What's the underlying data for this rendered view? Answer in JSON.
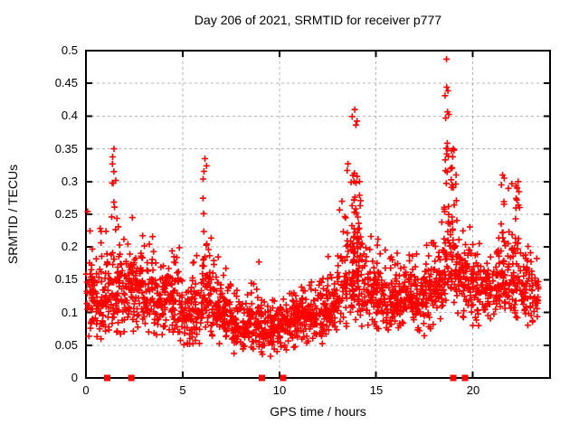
{
  "title": "Day 206 of 2021, SRMTID for receiver p777",
  "chart_data": {
    "type": "scatter",
    "title": "Day 206 of 2021, SRMTID for receiver p777",
    "xlabel": "GPS time / hours",
    "ylabel": "SRMTID / TECUs",
    "xlim": [
      0,
      24
    ],
    "ylim": [
      0,
      0.5
    ],
    "xticks": [
      0,
      5,
      10,
      15,
      20
    ],
    "yticks": [
      0,
      0.05,
      0.1,
      0.15,
      0.2,
      0.25,
      0.3,
      0.35,
      0.4,
      0.45,
      0.5
    ],
    "xtick_labels": [
      "0",
      "5",
      "10",
      "15",
      "20"
    ],
    "ytick_labels": [
      "0",
      "0.05",
      "0.1",
      "0.15",
      "0.2",
      "0.25",
      "0.3",
      "0.35",
      "0.4",
      "0.45",
      "0.5"
    ],
    "grid": true,
    "legend": "none",
    "colors": {
      "marker": "#ff0000",
      "grid": "#b3b3b3",
      "axis": "#000000",
      "background": "#ffffff",
      "text": "#000000"
    },
    "series": [
      {
        "name": "srmtid-scatter",
        "marker": "plus",
        "color": "#ff0000",
        "description": "Dense scatter of SRMTID values vs GPS time; baseline band ~0.05-0.18 TECUs with narrow spike columns near 1.5h (to 0.35), 6.1h (to 0.33), 13.9h (to 0.41), 18.7h (to 0.49), 21.5h (to 0.31) and 22.4h (to 0.30); quiet minimum 8-10h (~0.03-0.12).",
        "seed": 11,
        "bin_width": 0.5,
        "x_data_max": 23.4,
        "bins": [
          [
            0.0,
            48,
            0.055,
            0.115,
            0.27
          ],
          [
            0.5,
            48,
            0.055,
            0.115,
            0.23
          ],
          [
            1.0,
            48,
            0.06,
            0.13,
            0.28
          ],
          [
            1.5,
            48,
            0.06,
            0.135,
            0.25
          ],
          [
            2.0,
            48,
            0.065,
            0.13,
            0.25
          ],
          [
            2.5,
            48,
            0.07,
            0.14,
            0.22
          ],
          [
            3.0,
            44,
            0.06,
            0.115,
            0.23
          ],
          [
            3.5,
            44,
            0.055,
            0.11,
            0.18
          ],
          [
            4.0,
            48,
            0.055,
            0.115,
            0.2
          ],
          [
            4.5,
            48,
            0.05,
            0.105,
            0.21
          ],
          [
            5.0,
            48,
            0.04,
            0.09,
            0.16
          ],
          [
            5.5,
            48,
            0.045,
            0.1,
            0.19
          ],
          [
            6.0,
            48,
            0.055,
            0.115,
            0.24
          ],
          [
            6.5,
            48,
            0.05,
            0.1,
            0.2
          ],
          [
            7.0,
            48,
            0.04,
            0.09,
            0.17
          ],
          [
            7.5,
            48,
            0.035,
            0.08,
            0.14
          ],
          [
            8.0,
            48,
            0.03,
            0.07,
            0.13
          ],
          [
            8.5,
            48,
            0.03,
            0.07,
            0.18
          ],
          [
            9.0,
            48,
            0.03,
            0.065,
            0.12
          ],
          [
            9.5,
            48,
            0.03,
            0.07,
            0.12
          ],
          [
            10.0,
            48,
            0.04,
            0.08,
            0.13
          ],
          [
            10.5,
            48,
            0.04,
            0.085,
            0.13
          ],
          [
            11.0,
            48,
            0.045,
            0.09,
            0.14
          ],
          [
            11.5,
            48,
            0.05,
            0.09,
            0.15
          ],
          [
            12.0,
            48,
            0.05,
            0.095,
            0.16
          ],
          [
            12.5,
            48,
            0.06,
            0.105,
            0.19
          ],
          [
            13.0,
            50,
            0.07,
            0.12,
            0.27
          ],
          [
            13.5,
            54,
            0.08,
            0.14,
            0.33
          ],
          [
            14.0,
            50,
            0.075,
            0.135,
            0.3
          ],
          [
            14.5,
            48,
            0.07,
            0.12,
            0.22
          ],
          [
            15.0,
            48,
            0.065,
            0.115,
            0.22
          ],
          [
            15.5,
            48,
            0.06,
            0.11,
            0.19
          ],
          [
            16.0,
            48,
            0.06,
            0.11,
            0.2
          ],
          [
            16.5,
            48,
            0.065,
            0.12,
            0.2
          ],
          [
            17.0,
            48,
            0.06,
            0.11,
            0.19
          ],
          [
            17.5,
            48,
            0.065,
            0.12,
            0.22
          ],
          [
            18.0,
            48,
            0.07,
            0.13,
            0.3
          ],
          [
            18.5,
            52,
            0.08,
            0.15,
            0.36
          ],
          [
            19.0,
            50,
            0.08,
            0.15,
            0.32
          ],
          [
            19.5,
            48,
            0.08,
            0.14,
            0.26
          ],
          [
            20.0,
            42,
            0.075,
            0.13,
            0.21
          ],
          [
            20.5,
            42,
            0.075,
            0.13,
            0.22
          ],
          [
            21.0,
            48,
            0.08,
            0.135,
            0.26
          ],
          [
            21.5,
            48,
            0.08,
            0.14,
            0.31
          ],
          [
            22.0,
            48,
            0.08,
            0.14,
            0.3
          ],
          [
            22.5,
            44,
            0.075,
            0.13,
            0.24
          ],
          [
            23.0,
            32,
            0.08,
            0.12,
            0.2
          ]
        ],
        "spikes": [
          {
            "x": 1.45,
            "w": 0.25,
            "n": 10,
            "ymin": 0.2,
            "ymax": 0.35
          },
          {
            "x": 2.4,
            "w": 0.2,
            "n": 6,
            "ymin": 0.16,
            "ymax": 0.245
          },
          {
            "x": 6.15,
            "w": 0.2,
            "n": 14,
            "ymin": 0.13,
            "ymax": 0.335
          },
          {
            "x": 13.9,
            "w": 0.3,
            "n": 22,
            "ymin": 0.15,
            "ymax": 0.41
          },
          {
            "x": 14.15,
            "w": 0.2,
            "n": 8,
            "ymin": 0.15,
            "ymax": 0.3
          },
          {
            "x": 18.65,
            "w": 0.25,
            "n": 20,
            "ymin": 0.18,
            "ymax": 0.487
          },
          {
            "x": 19.0,
            "w": 0.3,
            "n": 12,
            "ymin": 0.18,
            "ymax": 0.35
          },
          {
            "x": 21.55,
            "w": 0.2,
            "n": 7,
            "ymin": 0.2,
            "ymax": 0.31
          },
          {
            "x": 22.35,
            "w": 0.3,
            "n": 9,
            "ymin": 0.19,
            "ymax": 0.3
          }
        ]
      },
      {
        "name": "flagged-zero-points",
        "marker": "filled-square",
        "color": "#ff0000",
        "x": [
          1.1,
          2.35,
          9.1,
          10.2,
          19.0,
          19.6
        ],
        "y": [
          0,
          0,
          0,
          0,
          0,
          0
        ]
      }
    ]
  }
}
